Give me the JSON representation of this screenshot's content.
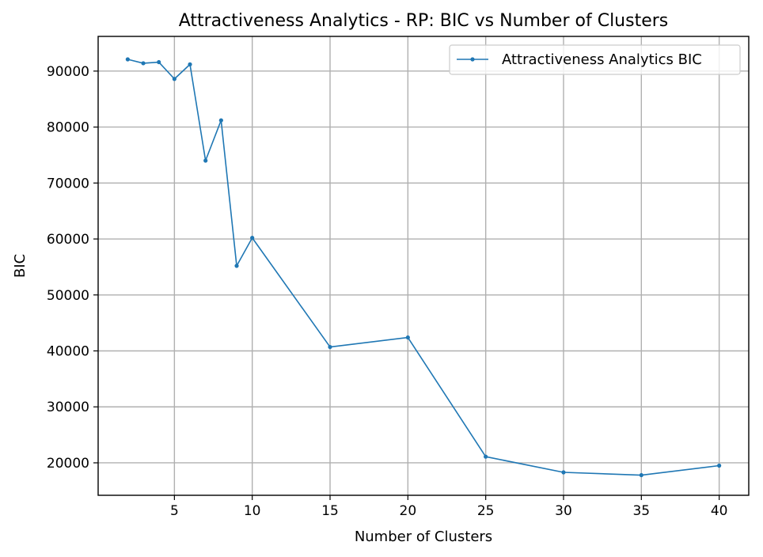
{
  "chart_data": {
    "type": "line",
    "title": "Attractiveness Analytics - RP: BIC vs Number of Clusters",
    "xlabel": "Number of Clusters",
    "ylabel": "BIC",
    "x": [
      2,
      3,
      4,
      5,
      6,
      7,
      8,
      9,
      10,
      15,
      20,
      25,
      30,
      35,
      40
    ],
    "series": [
      {
        "name": "Attractiveness Analytics BIC",
        "color": "#1f77b4",
        "marker": "dot",
        "values": [
          92100,
          91400,
          91600,
          88600,
          91200,
          74000,
          81200,
          55200,
          60200,
          40700,
          42400,
          21100,
          18300,
          17800,
          19500
        ]
      }
    ],
    "xlim": [
      0.1,
      41.9
    ],
    "ylim": [
      14200,
      96200
    ],
    "xticks": [
      5,
      10,
      15,
      20,
      25,
      30,
      35,
      40
    ],
    "yticks": [
      20000,
      30000,
      40000,
      50000,
      60000,
      70000,
      80000,
      90000
    ],
    "grid": true,
    "legend_position": "top-right"
  }
}
